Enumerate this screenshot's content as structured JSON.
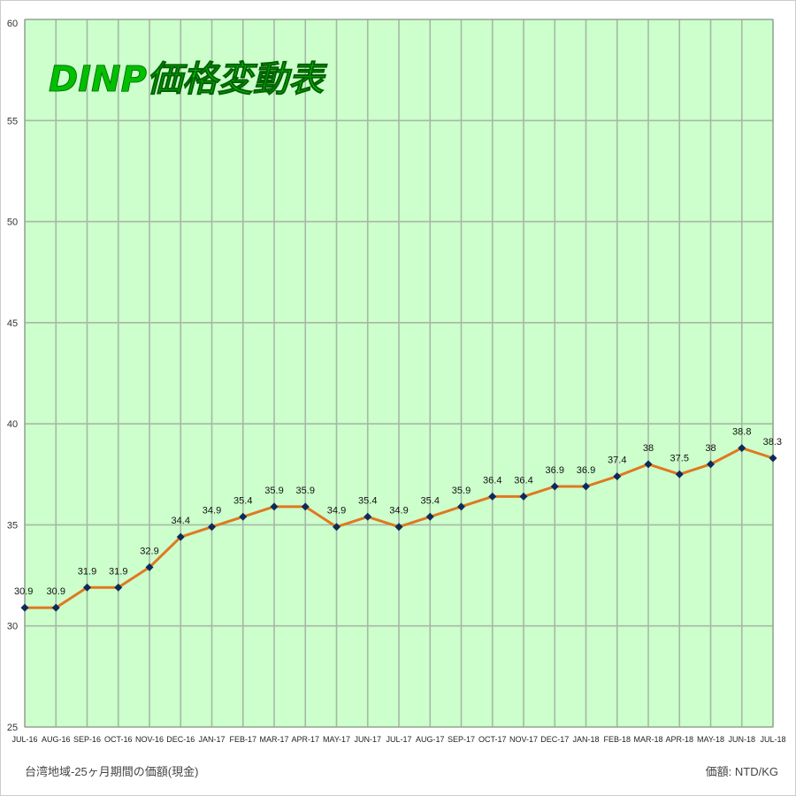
{
  "chart_data": {
    "type": "line",
    "title": "DINP価格変動表",
    "categories": [
      "JUL-16",
      "AUG-16",
      "SEP-16",
      "OCT-16",
      "NOV-16",
      "DEC-16",
      "JAN-17",
      "FEB-17",
      "MAR-17",
      "APR-17",
      "MAY-17",
      "JUN-17",
      "JUL-17",
      "AUG-17",
      "SEP-17",
      "OCT-17",
      "NOV-17",
      "DEC-17",
      "JAN-18",
      "FEB-18",
      "MAR-18",
      "APR-18",
      "MAY-18",
      "JUN-18",
      "JUL-18"
    ],
    "series": [
      {
        "values": [
          30.9,
          30.9,
          31.9,
          31.9,
          32.9,
          34.4,
          34.9,
          35.4,
          35.9,
          35.9,
          34.9,
          35.4,
          34.9,
          35.4,
          35.9,
          36.4,
          36.4,
          36.9,
          36.9,
          37.4,
          38,
          37.5,
          38,
          38.8,
          38.3
        ]
      }
    ],
    "value_labels": [
      "30.9",
      "30.9",
      "31.9",
      "31.9",
      "32.9",
      "34.4",
      "34.9",
      "35.4",
      "35.9",
      "35.9",
      "34.9",
      "35.4",
      "34.9",
      "35.4",
      "35.9",
      "36.4",
      "36.4",
      "36.9",
      "36.9",
      "37.4",
      "38",
      "37.5",
      "38",
      "38.8",
      "38.3"
    ],
    "ylim": [
      25,
      60
    ],
    "y_ticks": [
      "25",
      "30",
      "35",
      "40",
      "45",
      "50",
      "55",
      "60"
    ],
    "grid": true,
    "xlabel": "",
    "ylabel": ""
  },
  "footer": {
    "left": "台湾地域-25ヶ月期間の価額(現金)",
    "right": "価額: NTD/KG"
  },
  "colors": {
    "plot_background": "#ccffcc",
    "grid": "#a6b8a6",
    "line": "#e07820",
    "marker": "#0d2a5a",
    "title_fill": "#00c000"
  }
}
